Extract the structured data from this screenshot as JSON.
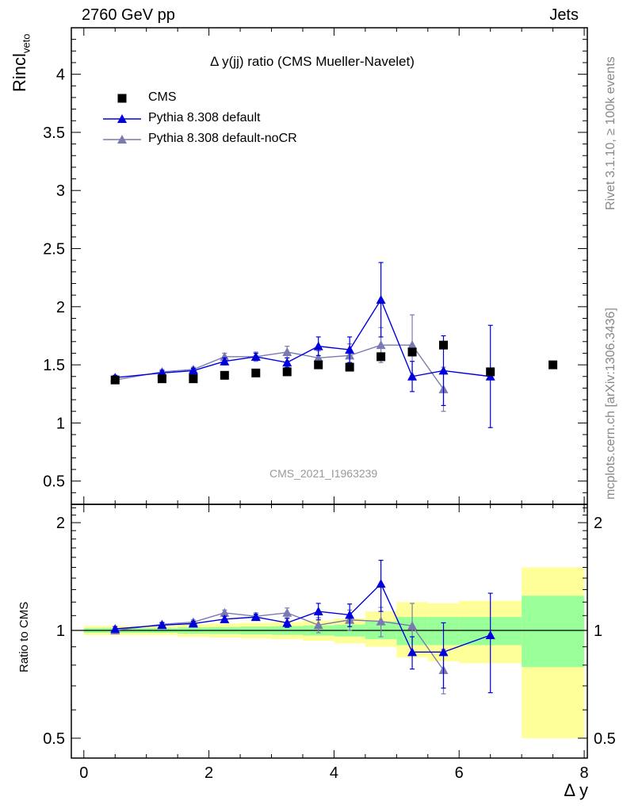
{
  "header": {
    "left": "2760 GeV pp",
    "right": "Jets",
    "side_rivet": "Rivet 3.1.10, ≥ 100k events",
    "side_mcplots": "mcplots.cern.ch [arXiv:1306.3436]"
  },
  "plot_title": "Δ y(jj) ratio (CMS Mueller-Navelet)",
  "watermark": "CMS_2021_I1963239",
  "axes": {
    "ylabel_top_main": "Rincl",
    "ylabel_top_sub": "veto",
    "ylabel_bottom": "Ratio to CMS",
    "xlabel": "Δ y"
  },
  "colors": {
    "cms": "#000000",
    "default": "#0000dd",
    "noCR": "#7a7ab0",
    "band_inner": "#99ff99",
    "band_outer": "#ffff99"
  },
  "chart_data": [
    {
      "type": "scatter",
      "panel": "main",
      "xlim": [
        -0.2,
        8.05
      ],
      "ylim": [
        0.3,
        4.4
      ],
      "x_ticks": [
        0,
        2,
        4,
        6,
        8
      ],
      "y_ticks": [
        0.5,
        1,
        1.5,
        2,
        2.5,
        3,
        3.5,
        4
      ],
      "y_tick_labels": [
        "0.5",
        "1",
        "1.5",
        "2",
        "2.5",
        "3",
        "3.5",
        "4"
      ],
      "legend": [
        "CMS",
        "Pythia 8.308 default",
        "Pythia 8.308 default-noCR"
      ],
      "series": [
        {
          "name": "CMS",
          "marker": "square",
          "x": [
            0.5,
            1.25,
            1.75,
            2.25,
            2.75,
            3.25,
            3.75,
            4.25,
            4.75,
            5.25,
            5.75,
            6.5,
            7.5
          ],
          "y": [
            1.37,
            1.38,
            1.38,
            1.41,
            1.43,
            1.44,
            1.5,
            1.48,
            1.57,
            1.61,
            1.67,
            1.44,
            1.5
          ]
        },
        {
          "name": "Pythia 8.308 default",
          "marker": "triangle",
          "x": [
            0.5,
            1.25,
            1.75,
            2.25,
            2.75,
            3.25,
            3.75,
            4.25,
            4.75,
            5.25,
            5.75,
            6.5
          ],
          "y": [
            1.39,
            1.43,
            1.45,
            1.53,
            1.57,
            1.52,
            1.66,
            1.63,
            2.06,
            1.4,
            1.45,
            1.4
          ],
          "err": [
            0.02,
            0.02,
            0.02,
            0.03,
            0.03,
            0.04,
            0.08,
            0.11,
            0.32,
            0.13,
            0.3,
            0.44
          ]
        },
        {
          "name": "Pythia 8.308 default-noCR",
          "marker": "triangle",
          "x": [
            0.5,
            1.25,
            1.75,
            2.25,
            2.75,
            3.25,
            3.75,
            4.25,
            4.75,
            5.25,
            5.75
          ],
          "y": [
            1.37,
            1.44,
            1.46,
            1.57,
            1.57,
            1.61,
            1.56,
            1.58,
            1.67,
            1.67,
            1.29
          ],
          "err": [
            0.02,
            0.02,
            0.02,
            0.03,
            0.04,
            0.05,
            0.06,
            0.1,
            0.15,
            0.26,
            0.19
          ]
        }
      ]
    },
    {
      "type": "scatter",
      "panel": "ratio",
      "ylabel": "Ratio to CMS",
      "xlabel": "Δ y",
      "scale": "log",
      "xlim": [
        -0.2,
        8.05
      ],
      "ylim": [
        0.44,
        2.25
      ],
      "x_ticks": [
        0,
        2,
        4,
        6,
        8
      ],
      "x_tick_labels": [
        "0",
        "2",
        "4",
        "6",
        "8"
      ],
      "y_ticks": [
        0.5,
        1,
        2
      ],
      "y_tick_labels": [
        "0.5",
        "1",
        "2"
      ],
      "bands": {
        "edges": [
          0,
          1,
          1.5,
          2,
          2.5,
          3,
          3.5,
          4,
          4.5,
          5,
          5.5,
          6,
          7,
          8
        ],
        "inner_low": [
          0.985,
          0.985,
          0.98,
          0.978,
          0.975,
          0.972,
          0.968,
          0.962,
          0.945,
          0.91,
          0.91,
          0.91,
          0.79
        ],
        "inner_high": [
          1.015,
          1.015,
          1.02,
          1.022,
          1.025,
          1.028,
          1.032,
          1.038,
          1.06,
          1.09,
          1.09,
          1.09,
          1.25
        ],
        "outer_low": [
          0.97,
          0.97,
          0.96,
          0.955,
          0.95,
          0.945,
          0.935,
          0.92,
          0.9,
          0.84,
          0.82,
          0.81,
          0.5
        ],
        "outer_high": [
          1.03,
          1.03,
          1.04,
          1.045,
          1.05,
          1.055,
          1.065,
          1.08,
          1.13,
          1.2,
          1.19,
          1.21,
          1.5
        ]
      },
      "series": [
        {
          "name": "Pythia 8.308 default",
          "marker": "triangle",
          "x": [
            0.5,
            1.25,
            1.75,
            2.25,
            2.75,
            3.25,
            3.75,
            4.25,
            4.75,
            5.25,
            5.75,
            6.5
          ],
          "y": [
            1.01,
            1.035,
            1.045,
            1.075,
            1.09,
            1.05,
            1.13,
            1.105,
            1.35,
            0.87,
            0.87,
            0.97
          ],
          "err": [
            0.015,
            0.015,
            0.015,
            0.02,
            0.02,
            0.03,
            0.06,
            0.08,
            0.22,
            0.09,
            0.18,
            0.3
          ]
        },
        {
          "name": "Pythia 8.308 default-noCR",
          "marker": "triangle",
          "x": [
            0.5,
            1.25,
            1.75,
            2.25,
            2.75,
            3.25,
            3.75,
            4.25,
            4.75,
            5.25,
            5.75
          ],
          "y": [
            1.0,
            1.04,
            1.055,
            1.12,
            1.095,
            1.12,
            1.035,
            1.07,
            1.06,
            1.03,
            0.775
          ],
          "err": [
            0.015,
            0.015,
            0.015,
            0.02,
            0.025,
            0.035,
            0.05,
            0.07,
            0.1,
            0.16,
            0.11
          ]
        }
      ]
    }
  ]
}
